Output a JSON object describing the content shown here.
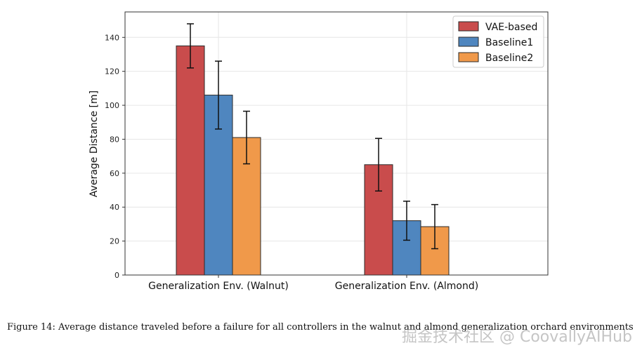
{
  "chart_data": {
    "type": "bar",
    "title": "",
    "xlabel": "",
    "ylabel": "Average Distance [m]",
    "ylim": [
      0,
      155
    ],
    "yticks": [
      0,
      20,
      40,
      60,
      80,
      100,
      120,
      140
    ],
    "categories": [
      "Generalization Env. (Walnut)",
      "Generalization Env. (Almond)"
    ],
    "series": [
      {
        "name": "VAE-based",
        "color": "#c94c4c",
        "values": [
          135,
          65
        ],
        "errors": [
          13,
          15.5
        ]
      },
      {
        "name": "Baseline1",
        "color": "#4f86bf",
        "values": [
          106,
          32
        ],
        "errors": [
          20,
          11.5
        ]
      },
      {
        "name": "Baseline2",
        "color": "#f0994a",
        "values": [
          81,
          28.5
        ],
        "errors": [
          15.5,
          13
        ]
      }
    ],
    "grid": true,
    "legend": "top-right"
  },
  "caption": "Figure 14: Average distance traveled before a failure for all controllers in the walnut and almond generalization orchard environments",
  "watermark": "掘金技术社区 @ CoovallyAIHub"
}
